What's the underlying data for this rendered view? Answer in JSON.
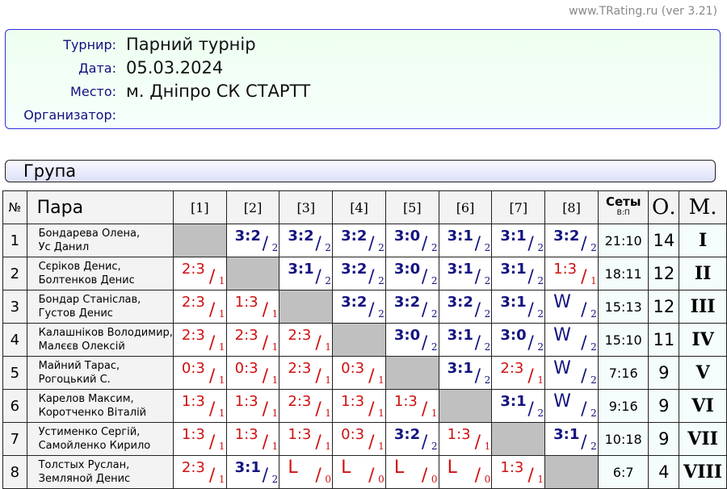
{
  "site": "www.TRating.ru (ver 3.21)",
  "info": [
    {
      "label": "Турнир:",
      "value": "Парний турнір"
    },
    {
      "label": "Дата:",
      "value": "05.03.2024"
    },
    {
      "label": "Место:",
      "value": "м. Дніпро СК СТАРТТ"
    },
    {
      "label": "Организатор:",
      "value": ""
    }
  ],
  "group": "Група",
  "headers": {
    "no": "№",
    "pair": "Пара",
    "cols": [
      "[1]",
      "[2]",
      "[3]",
      "[4]",
      "[5]",
      "[6]",
      "[7]",
      "[8]"
    ],
    "sets": "Сеты",
    "sets_sub": "В:П",
    "points": "О.",
    "place": "М."
  },
  "colors": {
    "win": "#141480",
    "loss": "#d01010",
    "diagonal": "#c0c0c0"
  },
  "rows": [
    {
      "no": "1",
      "p1": "Бондарева Олена,",
      "p2": "Ус Данил",
      "res": [
        null,
        [
          "3:2",
          "2"
        ],
        [
          "3:2",
          "2"
        ],
        [
          "3:2",
          "2"
        ],
        [
          "3:0",
          "2"
        ],
        [
          "3:1",
          "2"
        ],
        [
          "3:1",
          "2"
        ],
        [
          "3:2",
          "2"
        ]
      ],
      "sets": "21:10",
      "points": "14",
      "place": "I"
    },
    {
      "no": "2",
      "p1": "Сєріков Денис,",
      "p2": "Болтенков Денис",
      "res": [
        [
          "2:3",
          "1"
        ],
        null,
        [
          "3:1",
          "2"
        ],
        [
          "3:2",
          "2"
        ],
        [
          "3:0",
          "2"
        ],
        [
          "3:1",
          "2"
        ],
        [
          "3:1",
          "2"
        ],
        [
          "1:3",
          "1"
        ]
      ],
      "sets": "18:11",
      "points": "12",
      "place": "II"
    },
    {
      "no": "3",
      "p1": "Бондар Станіслав,",
      "p2": "Густов Денис",
      "res": [
        [
          "2:3",
          "1"
        ],
        [
          "1:3",
          "1"
        ],
        null,
        [
          "3:2",
          "2"
        ],
        [
          "3:2",
          "2"
        ],
        [
          "3:2",
          "2"
        ],
        [
          "3:1",
          "2"
        ],
        [
          "W",
          "2"
        ]
      ],
      "sets": "15:13",
      "points": "12",
      "place": "III"
    },
    {
      "no": "4",
      "p1": "Калашніков Володимир,",
      "p2": "Малєєв Олексій",
      "res": [
        [
          "2:3",
          "1"
        ],
        [
          "2:3",
          "1"
        ],
        [
          "2:3",
          "1"
        ],
        null,
        [
          "3:0",
          "2"
        ],
        [
          "3:1",
          "2"
        ],
        [
          "3:0",
          "2"
        ],
        [
          "W",
          "2"
        ]
      ],
      "sets": "15:10",
      "points": "11",
      "place": "IV"
    },
    {
      "no": "5",
      "p1": "Майний Тарас,",
      "p2": "Рогоцький С.",
      "res": [
        [
          "0:3",
          "1"
        ],
        [
          "0:3",
          "1"
        ],
        [
          "2:3",
          "1"
        ],
        [
          "0:3",
          "1"
        ],
        null,
        [
          "3:1",
          "2"
        ],
        [
          "2:3",
          "1"
        ],
        [
          "W",
          "2"
        ]
      ],
      "sets": "7:16",
      "points": "9",
      "place": "V"
    },
    {
      "no": "6",
      "p1": "Карелов Максим,",
      "p2": "Коротченко Віталій",
      "res": [
        [
          "1:3",
          "1"
        ],
        [
          "1:3",
          "1"
        ],
        [
          "2:3",
          "1"
        ],
        [
          "1:3",
          "1"
        ],
        [
          "1:3",
          "1"
        ],
        null,
        [
          "3:1",
          "2"
        ],
        [
          "W",
          "2"
        ]
      ],
      "sets": "9:16",
      "points": "9",
      "place": "VI"
    },
    {
      "no": "7",
      "p1": "Устименко Сергій,",
      "p2": "Самойленко Кирило",
      "res": [
        [
          "1:3",
          "1"
        ],
        [
          "1:3",
          "1"
        ],
        [
          "1:3",
          "1"
        ],
        [
          "0:3",
          "1"
        ],
        [
          "3:2",
          "2"
        ],
        [
          "1:3",
          "1"
        ],
        null,
        [
          "3:1",
          "2"
        ]
      ],
      "sets": "10:18",
      "points": "9",
      "place": "VII"
    },
    {
      "no": "8",
      "p1": "Толстых Руслан,",
      "p2": "Земляной Денис",
      "res": [
        [
          "2:3",
          "1"
        ],
        [
          "3:1",
          "2"
        ],
        [
          "L",
          "0"
        ],
        [
          "L",
          "0"
        ],
        [
          "L",
          "0"
        ],
        [
          "L",
          "0"
        ],
        [
          "1:3",
          "1"
        ],
        null
      ],
      "sets": "6:7",
      "points": "4",
      "place": "VIII"
    }
  ]
}
